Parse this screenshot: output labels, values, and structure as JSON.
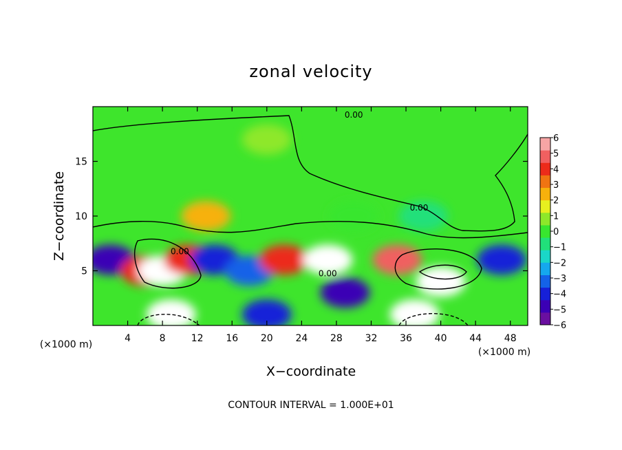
{
  "chart_data": {
    "type": "heatmap",
    "title": "zonal velocity",
    "xlabel": "X−coordinate",
    "ylabel": "Z−coordinate",
    "x_scale_note": "(×1000 m)",
    "z_scale_note": "(×1000 m)",
    "xlim": [
      0,
      50
    ],
    "ylim": [
      0,
      20
    ],
    "x_ticks": [
      4,
      8,
      12,
      16,
      20,
      24,
      28,
      32,
      36,
      40,
      44,
      48
    ],
    "x_tick_labels": [
      "4",
      "8",
      "12",
      "16",
      "20",
      "24",
      "28",
      "32",
      "36",
      "40",
      "44",
      "48"
    ],
    "y_ticks": [
      5,
      10,
      15
    ],
    "y_tick_labels": [
      "5",
      "10",
      "15"
    ],
    "colorbar": {
      "min": -6,
      "max": 6,
      "ticks": [
        6,
        5,
        4,
        3,
        2,
        1,
        0,
        -1,
        -2,
        -3,
        -4,
        -5,
        -6
      ],
      "tick_labels": [
        "6",
        "5",
        "4",
        "3",
        "2",
        "1",
        "0",
        "−1",
        "−2",
        "−3",
        "−4",
        "−5",
        "−6"
      ],
      "colors": [
        "#6a0fa0",
        "#3b00b5",
        "#1620d8",
        "#1462e8",
        "#15a8ee",
        "#1ad6c8",
        "#21e07a",
        "#38e62f",
        "#8ee82a",
        "#e7ef1f",
        "#f7b10c",
        "#f07412",
        "#ec2b1a",
        "#f06060",
        "#f6a5a5"
      ]
    },
    "contour_labels": [
      {
        "x": 30.0,
        "z": 19.0,
        "text": "0.00"
      },
      {
        "x": 37.5,
        "z": 10.5,
        "text": "0.00"
      },
      {
        "x": 10.0,
        "z": 6.5,
        "text": "0.00"
      },
      {
        "x": 27.0,
        "z": 4.5,
        "text": "0.00"
      }
    ],
    "cells": [
      {
        "x": 20,
        "z": 17,
        "value": 1
      },
      {
        "x": 13,
        "z": 10,
        "value": 2
      },
      {
        "x": 30,
        "z": 10,
        "value": 0
      },
      {
        "x": 38,
        "z": 10,
        "value": -1
      },
      {
        "x": 2,
        "z": 6,
        "value": -5
      },
      {
        "x": 6,
        "z": 5,
        "value": 4
      },
      {
        "x": 8,
        "z": 5,
        "value": 6
      },
      {
        "x": 11,
        "z": 6,
        "value": 4
      },
      {
        "x": 14,
        "z": 6,
        "value": -4
      },
      {
        "x": 18,
        "z": 5,
        "value": -3
      },
      {
        "x": 22,
        "z": 6,
        "value": 4
      },
      {
        "x": 27,
        "z": 6,
        "value": 6
      },
      {
        "x": 29,
        "z": 3,
        "value": -5
      },
      {
        "x": 35,
        "z": 6,
        "value": 5
      },
      {
        "x": 40,
        "z": 4,
        "value": 6
      },
      {
        "x": 47,
        "z": 6,
        "value": -4
      },
      {
        "x": 9,
        "z": 1,
        "value": 6
      },
      {
        "x": 37,
        "z": 1,
        "value": 6
      },
      {
        "x": 20,
        "z": 1,
        "value": -4
      }
    ],
    "annotation": "CONTOUR INTERVAL = 1.000E+01"
  }
}
